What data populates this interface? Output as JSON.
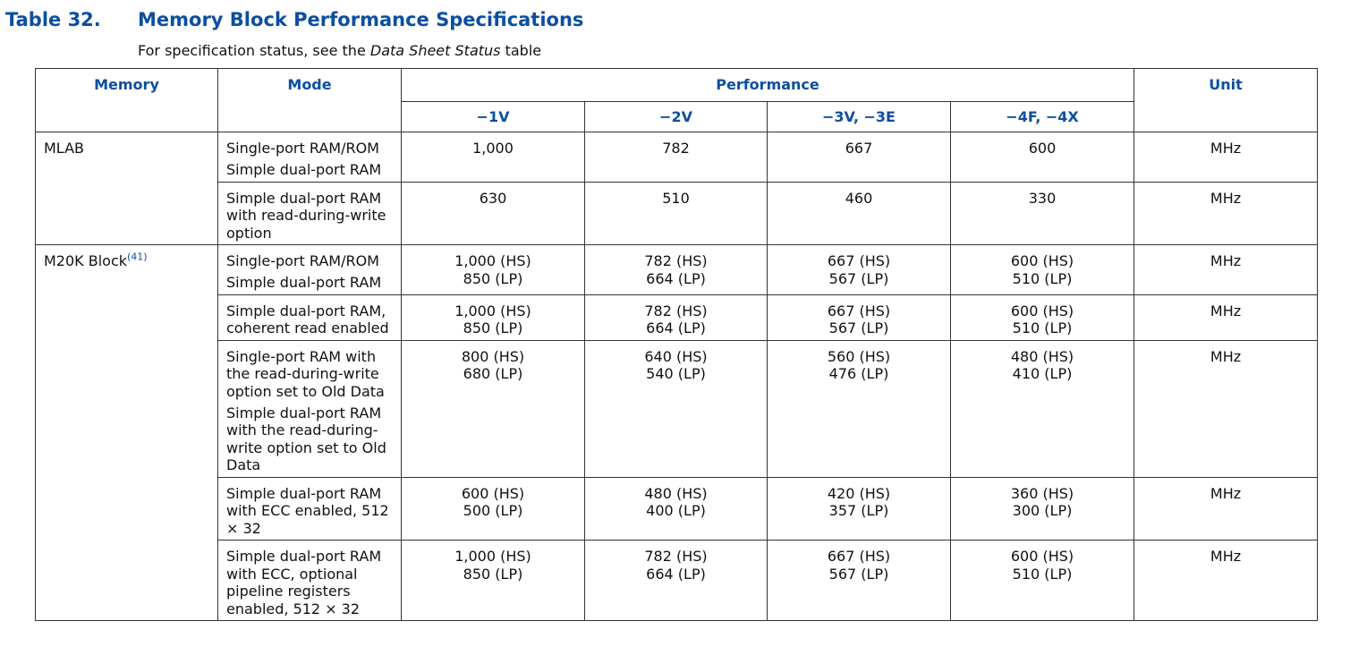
{
  "caption": {
    "number": "Table 32.",
    "title": "Memory Block Performance Specifications"
  },
  "status_note": {
    "prefix": "For specification status, see the ",
    "link": "Data Sheet Status",
    "suffix": " table"
  },
  "header": {
    "memory": "Memory",
    "mode": "Mode",
    "performance": "Performance",
    "unit": "Unit",
    "grades": [
      "−1V",
      "−2V",
      "−3V, −3E",
      "−4F, −4X"
    ]
  },
  "groups": [
    {
      "memory": "MLAB",
      "footnote": "",
      "rows": [
        {
          "mode": [
            [
              "Single-port RAM/ROM"
            ],
            [
              "Simple dual-port RAM"
            ]
          ],
          "values": [
            [
              "1,000"
            ],
            [
              "782"
            ],
            [
              "667"
            ],
            [
              "600"
            ]
          ],
          "unit": "MHz"
        },
        {
          "mode": [
            [
              "Simple dual-port RAM",
              "with read-during-write",
              "option"
            ]
          ],
          "values": [
            [
              "630"
            ],
            [
              "510"
            ],
            [
              "460"
            ],
            [
              "330"
            ]
          ],
          "unit": "MHz"
        }
      ]
    },
    {
      "memory": "M20K Block",
      "footnote": "(41)",
      "rows": [
        {
          "mode": [
            [
              "Single-port RAM/ROM"
            ],
            [
              "Simple dual-port RAM"
            ]
          ],
          "values": [
            [
              "1,000 (HS)",
              "850 (LP)"
            ],
            [
              "782 (HS)",
              "664 (LP)"
            ],
            [
              "667 (HS)",
              "567 (LP)"
            ],
            [
              "600 (HS)",
              "510 (LP)"
            ]
          ],
          "unit": "MHz"
        },
        {
          "mode": [
            [
              "Simple dual-port RAM,",
              "coherent read enabled"
            ]
          ],
          "values": [
            [
              "1,000 (HS)",
              "850 (LP)"
            ],
            [
              "782 (HS)",
              "664 (LP)"
            ],
            [
              "667 (HS)",
              "567 (LP)"
            ],
            [
              "600 (HS)",
              "510 (LP)"
            ]
          ],
          "unit": "MHz"
        },
        {
          "mode": [
            [
              "Single-port RAM with",
              "the read-during-write",
              "option set to Old Data"
            ],
            [
              "Simple dual-port RAM",
              "with the read-during-",
              "write option set to Old",
              "Data"
            ]
          ],
          "values": [
            [
              "800 (HS)",
              "680 (LP)"
            ],
            [
              "640 (HS)",
              "540 (LP)"
            ],
            [
              "560 (HS)",
              "476 (LP)"
            ],
            [
              "480 (HS)",
              "410 (LP)"
            ]
          ],
          "unit": "MHz"
        },
        {
          "mode": [
            [
              "Simple dual-port RAM",
              "with ECC enabled, 512",
              "× 32"
            ]
          ],
          "values": [
            [
              "600 (HS)",
              "500 (LP)"
            ],
            [
              "480 (HS)",
              "400 (LP)"
            ],
            [
              "420 (HS)",
              "357 (LP)"
            ],
            [
              "360 (HS)",
              "300 (LP)"
            ]
          ],
          "unit": "MHz"
        },
        {
          "mode": [
            [
              "Simple dual-port RAM",
              "with ECC, optional",
              "pipeline registers",
              "enabled, 512 × 32"
            ]
          ],
          "values": [
            [
              "1,000 (HS)",
              "850 (LP)"
            ],
            [
              "782 (HS)",
              "664 (LP)"
            ],
            [
              "667 (HS)",
              "567 (LP)"
            ],
            [
              "600 (HS)",
              "510 (LP)"
            ]
          ],
          "unit": "MHz"
        }
      ]
    }
  ]
}
